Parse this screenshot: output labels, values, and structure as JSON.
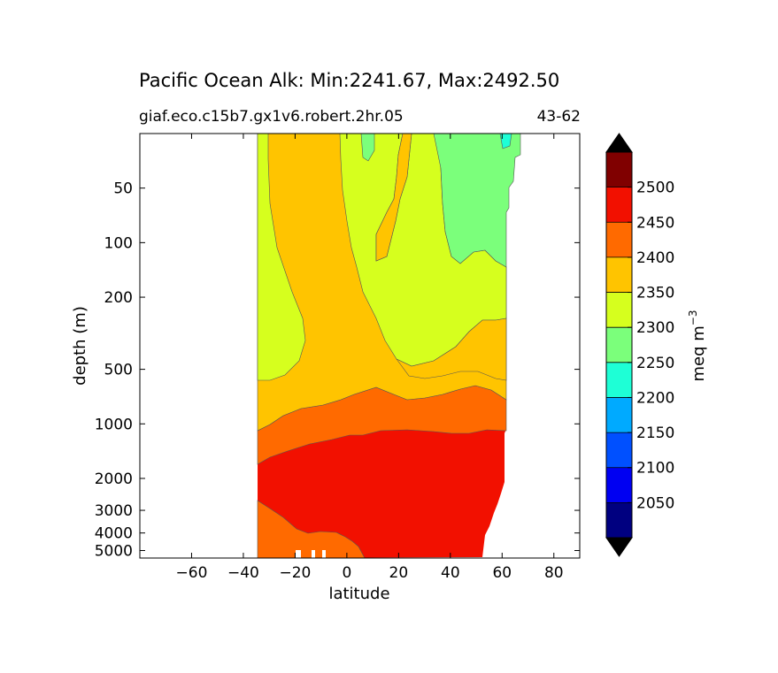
{
  "chart_data": {
    "type": "contour",
    "title": "Pacific Ocean Alk: Min:2241.67, Max:2492.50",
    "subtitle_left": "giaf.eco.c15b7.gx1v6.robert.2hr.05",
    "subtitle_right": "43-62",
    "xlabel": "latitude",
    "ylabel": "depth (m)",
    "xlim": [
      -80,
      90
    ],
    "ylim": [
      5500,
      25
    ],
    "yscale": "log-like (depth)",
    "xticks": [
      -60,
      -40,
      -20,
      0,
      20,
      40,
      60,
      80
    ],
    "xtick_labels": [
      "−60",
      "−40",
      "−20",
      "0",
      "20",
      "40",
      "60",
      "80"
    ],
    "yticks": [
      50,
      100,
      200,
      500,
      1000,
      2000,
      3000,
      4000,
      5000
    ],
    "ytick_labels": [
      "50",
      "100",
      "200",
      "500",
      "1000",
      "2000",
      "3000",
      "4000",
      "5000"
    ],
    "colorbar": {
      "label": "meq m",
      "label_sup": "−3",
      "levels": [
        2000,
        2050,
        2100,
        2150,
        2200,
        2250,
        2300,
        2350,
        2400,
        2450,
        2500,
        2550
      ],
      "tick_labels": [
        "2050",
        "2100",
        "2150",
        "2200",
        "2250",
        "2300",
        "2350",
        "2400",
        "2450",
        "2500"
      ],
      "colors": [
        "#000080",
        "#0000f2",
        "#0050ff",
        "#00aaff",
        "#1effd6",
        "#7bff7b",
        "#d6ff1e",
        "#ffc400",
        "#ff6a00",
        "#f21000",
        "#800000"
      ],
      "extend": "both",
      "under_color": "#000000",
      "over_color": "#000000"
    },
    "data_min": 2241.67,
    "data_max": 2492.5,
    "fields": {
      "data_extent_lat": [
        -34,
        68
      ],
      "regions": [
        {
          "value_range": [
            2300,
            2350
          ],
          "description": "upper ocean south of ~20N, 25-600 m"
        },
        {
          "value_range": [
            2350,
            2400
          ],
          "description": "subtropical upper/intermediate, to ~1200 m"
        },
        {
          "value_range": [
            2250,
            2300
          ],
          "description": "north Pacific upper ocean, 40-62N"
        },
        {
          "value_range": [
            2400,
            2450
          ],
          "description": "intermediate layer ~800-2000 m"
        },
        {
          "value_range": [
            2450,
            2500
          ],
          "description": "deep water below ~2000 m"
        }
      ]
    }
  }
}
